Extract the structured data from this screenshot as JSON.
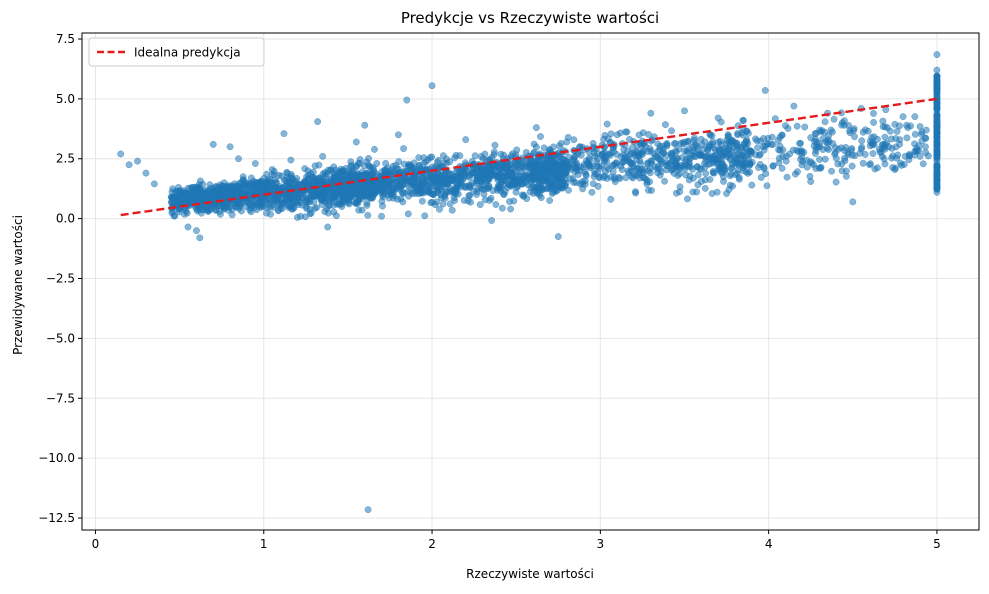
{
  "chart_data": {
    "type": "scatter",
    "title": "Predykcje vs Rzeczywiste wartości",
    "xlabel": "Rzeczywiste wartości",
    "ylabel": "Przewidywane wartości",
    "xlim": [
      -0.08,
      5.25
    ],
    "ylim": [
      -13.0,
      7.75
    ],
    "xticks": [
      0,
      1,
      2,
      3,
      4,
      5
    ],
    "xtick_labels": [
      "0",
      "1",
      "2",
      "3",
      "4",
      "5"
    ],
    "yticks": [
      7.5,
      5.0,
      2.5,
      0.0,
      -2.5,
      -5.0,
      -7.5,
      -10.0,
      -12.5
    ],
    "ytick_labels": [
      "7.5",
      "5.0",
      "2.5",
      "0.0",
      "−2.5",
      "−5.0",
      "−7.5",
      "−10.0",
      "−12.5"
    ],
    "grid": true,
    "legend_position": "top-left",
    "colors": {
      "points": "#1f77b4",
      "ideal_line": "#e41a1c"
    },
    "series": [
      {
        "type": "scatter",
        "points": [
          [
            0.15,
            2.7
          ],
          [
            0.2,
            2.25
          ],
          [
            0.25,
            2.4
          ],
          [
            0.3,
            1.9
          ],
          [
            0.35,
            1.45
          ],
          [
            0.45,
            0.9
          ],
          [
            0.5,
            0.6
          ],
          [
            0.55,
            -0.35
          ],
          [
            0.6,
            -0.5
          ],
          [
            0.62,
            -0.8
          ],
          [
            0.67,
            0.3
          ],
          [
            0.7,
            3.1
          ],
          [
            0.8,
            3.0
          ],
          [
            0.85,
            2.5
          ],
          [
            0.95,
            2.3
          ],
          [
            1.05,
            2.05
          ],
          [
            1.12,
            3.55
          ],
          [
            1.15,
            1.2
          ],
          [
            1.18,
            0.45
          ],
          [
            1.2,
            0.05
          ],
          [
            1.25,
            0.5
          ],
          [
            1.3,
            1.7
          ],
          [
            1.32,
            4.05
          ],
          [
            1.35,
            2.6
          ],
          [
            1.38,
            -0.35
          ],
          [
            1.42,
            0.9
          ],
          [
            1.5,
            1.4
          ],
          [
            1.55,
            3.2
          ],
          [
            1.6,
            3.9
          ],
          [
            1.62,
            -12.15
          ],
          [
            1.7,
            0.1
          ],
          [
            1.8,
            3.5
          ],
          [
            1.85,
            4.95
          ],
          [
            1.9,
            1.05
          ],
          [
            1.95,
            2.3
          ],
          [
            2.0,
            5.55
          ],
          [
            2.05,
            1.2
          ],
          [
            2.12,
            0.35
          ],
          [
            2.2,
            3.3
          ],
          [
            2.35,
            0.85
          ],
          [
            2.45,
            1.3
          ],
          [
            2.55,
            1.55
          ],
          [
            2.62,
            3.8
          ],
          [
            2.75,
            -0.75
          ],
          [
            2.8,
            3.2
          ],
          [
            2.88,
            1.45
          ],
          [
            2.95,
            1.1
          ],
          [
            3.0,
            2.1
          ],
          [
            3.1,
            3.5
          ],
          [
            3.2,
            1.85
          ],
          [
            3.3,
            4.4
          ],
          [
            3.4,
            2.2
          ],
          [
            3.5,
            4.5
          ],
          [
            3.6,
            1.55
          ],
          [
            3.7,
            4.2
          ],
          [
            3.75,
            1.05
          ],
          [
            3.85,
            4.1
          ],
          [
            3.9,
            1.4
          ],
          [
            3.98,
            5.35
          ],
          [
            4.08,
            2.1
          ],
          [
            4.15,
            4.7
          ],
          [
            4.25,
            1.55
          ],
          [
            4.35,
            4.4
          ],
          [
            4.45,
            3.9
          ],
          [
            4.5,
            0.7
          ],
          [
            4.55,
            4.6
          ],
          [
            4.6,
            2.25
          ],
          [
            4.68,
            3.1
          ],
          [
            4.75,
            2.05
          ],
          [
            4.82,
            3.9
          ],
          [
            4.9,
            2.6
          ],
          [
            5.0,
            6.85
          ],
          [
            5.0,
            6.2
          ],
          [
            5.0,
            5.8
          ],
          [
            5.0,
            5.1
          ],
          [
            5.0,
            4.6
          ],
          [
            5.0,
            4.0
          ],
          [
            5.0,
            3.4
          ],
          [
            5.0,
            2.8
          ],
          [
            5.0,
            2.2
          ],
          [
            5.0,
            1.6
          ],
          [
            5.0,
            1.1
          ]
        ],
        "bulk_cloud": {
          "x_range": [
            0.45,
            5.0
          ],
          "y_at_x0_45": 0.75,
          "y_at_x5": 3.3,
          "note_count": 3000
        }
      },
      {
        "type": "line",
        "name": "Idealna predykcja",
        "x": [
          0.15,
          5.0
        ],
        "y": [
          0.15,
          5.0
        ],
        "dash": "dashed"
      }
    ]
  }
}
